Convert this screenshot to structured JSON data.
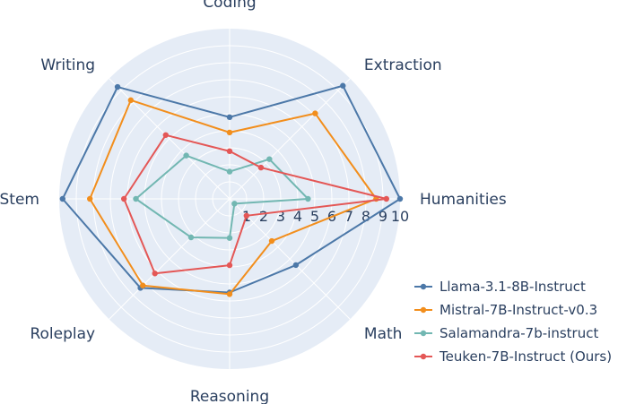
{
  "chart_data": {
    "type": "radar",
    "categories": [
      "Humanities",
      "Extraction",
      "Coding",
      "Writing",
      "Stem",
      "Roleplay",
      "Reasoning",
      "Math"
    ],
    "radial_ticks": [
      "1",
      "2",
      "3",
      "4",
      "5",
      "6",
      "7",
      "8",
      "9",
      "10"
    ],
    "rlim": [
      0,
      10
    ],
    "grid": true,
    "legend_position": "bottom-right",
    "series": [
      {
        "name": "Llama-3.1-8B-Instruct",
        "color": "#4c78a8",
        "values": [
          10,
          9.4,
          4.8,
          9.3,
          9.8,
          7.4,
          5.5,
          5.5
        ]
      },
      {
        "name": "Mistral-7B-Instruct-v0.3",
        "color": "#f28e1c",
        "values": [
          8.6,
          7.1,
          3.9,
          8.2,
          8.2,
          7.2,
          5.6,
          3.5
        ]
      },
      {
        "name": "Salamandra-7b-instruct",
        "color": "#72b7b2",
        "values": [
          4.6,
          3.3,
          1.6,
          3.6,
          5.5,
          3.2,
          2.3,
          0.4
        ]
      },
      {
        "name": "Teuken-7B-Instruct (Ours)",
        "color": "#e45756",
        "values": [
          9.2,
          2.6,
          2.8,
          5.3,
          6.2,
          6.2,
          3.9,
          1.4
        ]
      }
    ]
  }
}
